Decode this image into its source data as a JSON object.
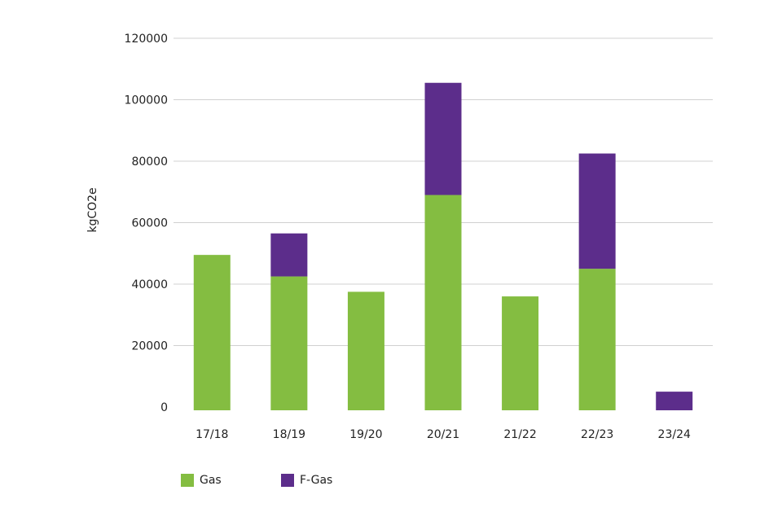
{
  "chart_data": {
    "type": "bar",
    "stacked": true,
    "categories": [
      "17/18",
      "18/19",
      "19/20",
      "20/21",
      "21/22",
      "22/23",
      "23/24"
    ],
    "series": [
      {
        "name": "Gas",
        "color": "#84bd41",
        "values": [
          49500,
          42500,
          37500,
          69000,
          36000,
          45000,
          0
        ]
      },
      {
        "name": "F-Gas",
        "color": "#5c2d8b",
        "values": [
          0,
          14000,
          0,
          36500,
          0,
          37500,
          5000
        ]
      }
    ],
    "ylabel": "kgCO2e",
    "xlabel": "",
    "ylim": [
      0,
      120000
    ],
    "yticks": [
      0,
      20000,
      40000,
      60000,
      80000,
      100000,
      120000
    ],
    "grid": true,
    "legend_placement": "bottom-left"
  },
  "legend": {
    "gas_label": "Gas",
    "fgas_label": "F-Gas",
    "gas_color": "#84bd41",
    "fgas_color": "#5c2d8b"
  }
}
